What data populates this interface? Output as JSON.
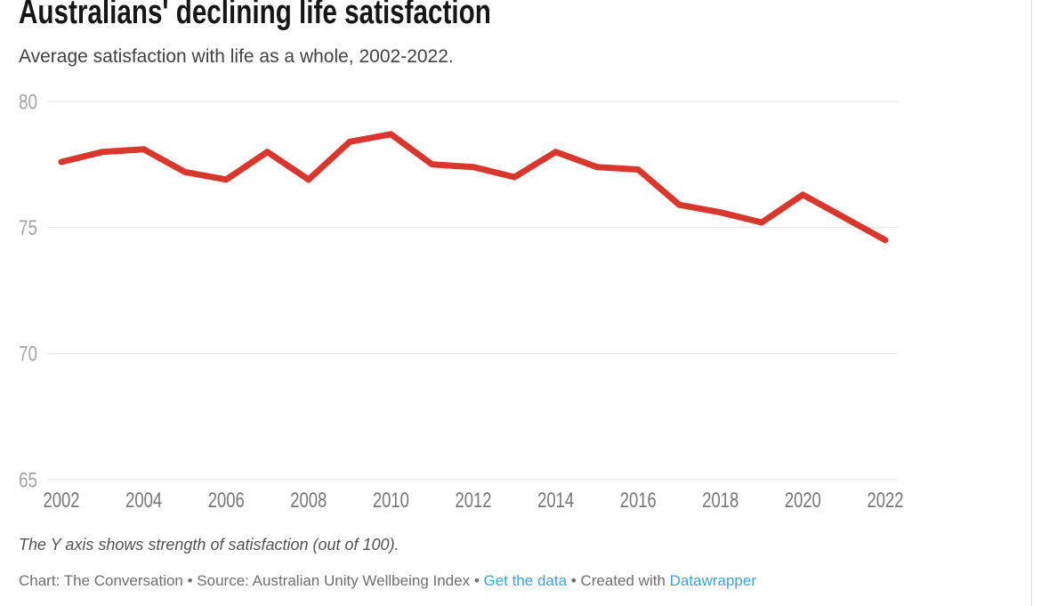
{
  "chart_data": {
    "type": "line",
    "title": "Australians' declining life satisfaction",
    "subtitle": "Average satisfaction with life as a whole, 2002-2022.",
    "x": [
      2002,
      2003,
      2004,
      2005,
      2006,
      2007,
      2008,
      2009,
      2010,
      2011,
      2012,
      2013,
      2014,
      2015,
      2016,
      2017,
      2018,
      2019,
      2020,
      2021,
      2022
    ],
    "values": [
      77.6,
      78.0,
      78.1,
      77.2,
      76.9,
      78.0,
      76.9,
      78.4,
      78.7,
      77.5,
      77.4,
      77.0,
      78.0,
      77.4,
      77.3,
      75.9,
      75.6,
      75.2,
      76.3,
      75.4,
      74.5
    ],
    "series_name": "Average satisfaction with life as a whole",
    "xlabel": "",
    "ylabel": "",
    "ylim": [
      65,
      80
    ],
    "xlim": [
      2002,
      2022
    ],
    "y_ticks": [
      80,
      75,
      70,
      65
    ],
    "x_ticks": [
      2002,
      2004,
      2006,
      2008,
      2010,
      2012,
      2014,
      2016,
      2018,
      2020,
      2022
    ],
    "grid": "horizontal",
    "legend": "none",
    "line_color": "#d7372d",
    "note": "The Y axis shows strength of satisfaction (out of 100)."
  },
  "footer": {
    "byline_prefix": "Chart: The Conversation • Source: Australian Unity Wellbeing Index",
    "separator": " • ",
    "get_data_link": "Get the data",
    "created_with": "Created with ",
    "datawrapper_link": "Datawrapper",
    "link_color": "#3fa2d6"
  }
}
